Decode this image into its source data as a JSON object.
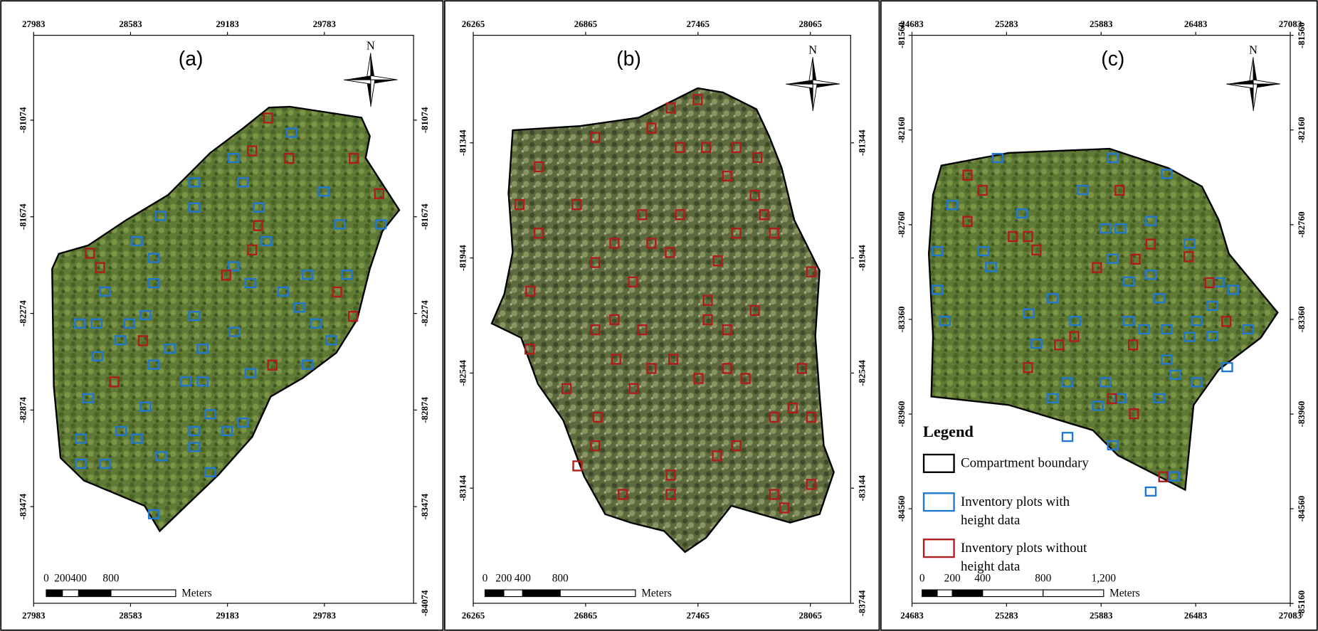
{
  "panels": [
    {
      "label": "(a)",
      "north": "N",
      "top_ticks": [
        "27983",
        "28583",
        "29183",
        "29783"
      ],
      "bottom_ticks": [
        "27983",
        "28583",
        "29183",
        "29783"
      ],
      "left_ticks": [
        "-81074",
        "-81674",
        "-82274",
        "-82874",
        "-83474"
      ],
      "right_ticks": [
        "-81074",
        "-81674",
        "-82274",
        "-82874",
        "-83474",
        "-84074"
      ],
      "scale_labels": [
        "0",
        "200",
        "400",
        "800"
      ],
      "scale_unit": "Meters"
    },
    {
      "label": "(b)",
      "north": "N",
      "top_ticks": [
        "26265",
        "26865",
        "27465",
        "28065"
      ],
      "bottom_ticks": [
        "26265",
        "26865",
        "27465",
        "28065"
      ],
      "left_ticks": [
        "-81344",
        "-81944",
        "-82544",
        "-83144"
      ],
      "right_ticks": [
        "-81344",
        "-81944",
        "-82544",
        "-83144",
        "-83744"
      ],
      "scale_labels": [
        "0",
        "200",
        "400",
        "800"
      ],
      "scale_unit": "Meters"
    },
    {
      "label": "(c)",
      "north": "N",
      "top_ticks": [
        "24683",
        "25283",
        "25883",
        "26483",
        "27083"
      ],
      "bottom_ticks": [
        "24683",
        "25283",
        "25883",
        "26483",
        "27083"
      ],
      "left_ticks": [
        "-81560",
        "-82160",
        "-82760",
        "-83360",
        "-83960",
        "-84560"
      ],
      "right_ticks": [
        "-81560",
        "-82160",
        "-82760",
        "-83360",
        "-83960",
        "-84560",
        "-85160"
      ],
      "scale_labels": [
        "0",
        "200",
        "400",
        "800",
        "1,200"
      ],
      "scale_unit": "Meters"
    }
  ],
  "legend": {
    "title": "Legend",
    "items": [
      [
        "Compartment boundary"
      ],
      [
        "Inventory plots with",
        "height data"
      ],
      [
        "Inventory plots without",
        "height data"
      ]
    ]
  }
}
